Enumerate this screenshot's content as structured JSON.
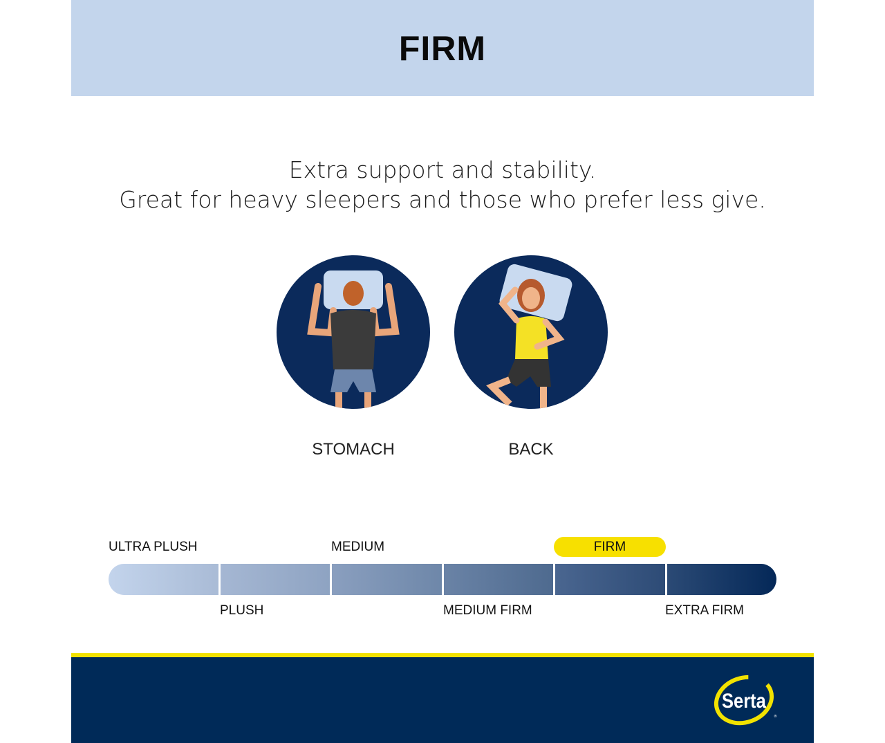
{
  "header": {
    "title": "FIRM"
  },
  "description": {
    "line1": "Extra support and stability.",
    "line2": "Great for heavy sleepers and those who prefer less give."
  },
  "sleep_positions": [
    {
      "label": "STOMACH",
      "icon": "stomach-sleeper-illustration"
    },
    {
      "label": "BACK",
      "icon": "back-sleeper-illustration"
    }
  ],
  "firmness_scale": {
    "levels": [
      "ULTRA PLUSH",
      "PLUSH",
      "MEDIUM",
      "MEDIUM FIRM",
      "FIRM",
      "EXTRA FIRM"
    ],
    "selected": "FIRM",
    "colors": [
      "#bfd0e8",
      "#9aadc9",
      "#7b91b0",
      "#5a7394",
      "#3a5680",
      "#0b2a5b"
    ],
    "highlight_color": "#f7e000"
  },
  "brand": {
    "logo_text": "Serta",
    "navy": "#002a58",
    "yellow": "#f2e200"
  }
}
